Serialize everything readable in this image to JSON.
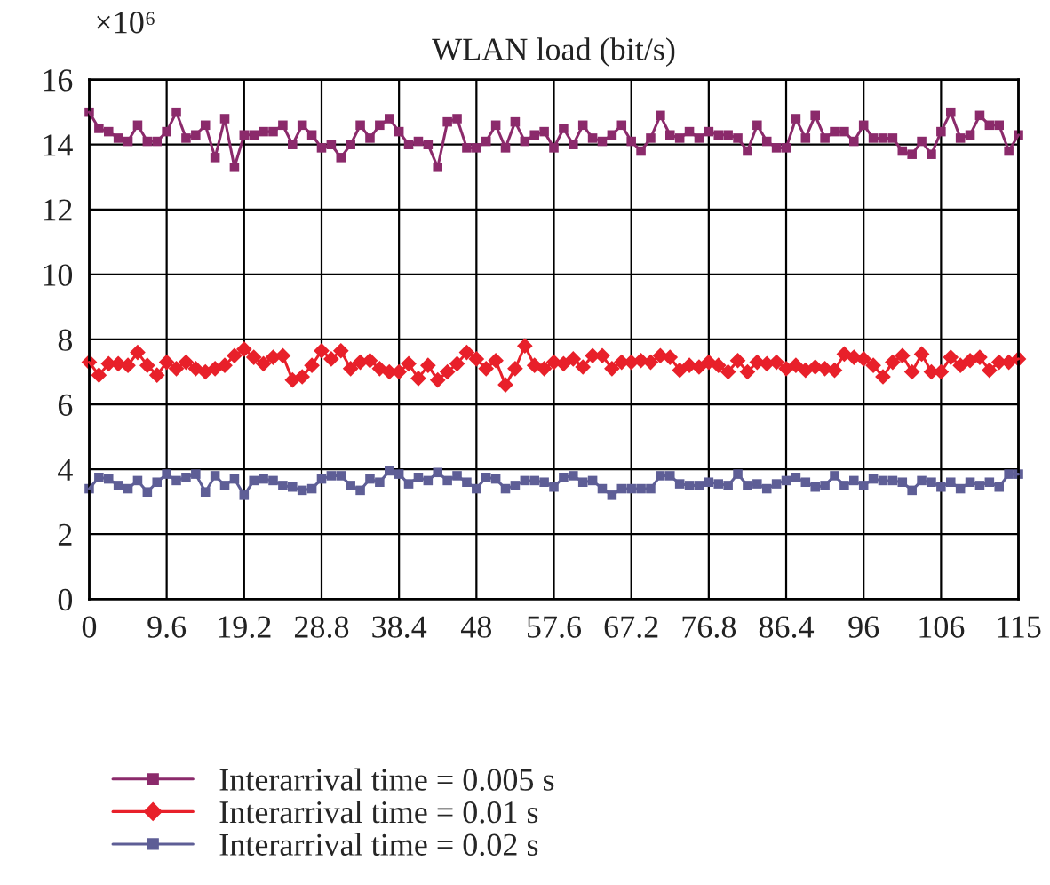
{
  "chart_data": {
    "type": "line",
    "title": "WLAN load (bit/s)",
    "annotations": [
      "×10⁶"
    ],
    "x": [
      0,
      1.2,
      2.4,
      3.6,
      4.8,
      6,
      7.2,
      8.4,
      9.6,
      10.8,
      12,
      13.2,
      14.4,
      15.6,
      16.8,
      18,
      19.2,
      20.4,
      21.6,
      22.8,
      24,
      25.2,
      26.4,
      27.6,
      28.8,
      30,
      31.2,
      32.4,
      33.6,
      34.8,
      36,
      37.2,
      38.4,
      39.6,
      40.8,
      42,
      43.2,
      44.4,
      45.6,
      46.8,
      48,
      49.2,
      50.4,
      51.6,
      52.8,
      54,
      55.2,
      56.4,
      57.6,
      58.8,
      60,
      61.2,
      62.4,
      63.6,
      64.8,
      66,
      67.2,
      68.4,
      69.6,
      70.8,
      72,
      73.2,
      74.4,
      75.6,
      76.8,
      78,
      79.2,
      80.4,
      81.6,
      82.8,
      84,
      85.2,
      86.4,
      87.6,
      88.8,
      90,
      91.2,
      92.4,
      93.6,
      94.8,
      96,
      97.2,
      98.4,
      99.6,
      100.8,
      102,
      103.2,
      104.4,
      105.6,
      106.8,
      108,
      109.2,
      110.4,
      111.6,
      112.8,
      114,
      115.2
    ],
    "series": [
      {
        "name": "Interarrival time = 0.005 s",
        "color": "#8b2a6b",
        "marker": "square",
        "values": [
          15.0,
          14.5,
          14.4,
          14.2,
          14.1,
          14.6,
          14.1,
          14.1,
          14.4,
          15.0,
          14.2,
          14.3,
          14.6,
          13.6,
          14.8,
          13.3,
          14.3,
          14.3,
          14.4,
          14.4,
          14.6,
          14.0,
          14.6,
          14.3,
          13.9,
          14.0,
          13.6,
          14.0,
          14.6,
          14.2,
          14.6,
          14.8,
          14.4,
          14.0,
          14.1,
          14.0,
          13.3,
          14.7,
          14.8,
          13.9,
          13.9,
          14.1,
          14.6,
          13.9,
          14.7,
          14.1,
          14.3,
          14.4,
          13.9,
          14.5,
          14.0,
          14.6,
          14.2,
          14.1,
          14.3,
          14.6,
          14.1,
          13.8,
          14.2,
          14.9,
          14.3,
          14.2,
          14.4,
          14.2,
          14.4,
          14.3,
          14.3,
          14.2,
          13.8,
          14.6,
          14.1,
          13.9,
          13.9,
          14.8,
          14.2,
          14.9,
          14.2,
          14.4,
          14.4,
          14.1,
          14.6,
          14.2,
          14.2,
          14.2,
          13.8,
          13.7,
          14.1,
          13.7,
          14.4,
          15.0,
          14.2,
          14.3,
          14.9,
          14.6,
          14.6,
          13.8,
          14.3
        ]
      },
      {
        "name": "Interarrival time = 0.01 s",
        "color": "#e8202a",
        "marker": "diamond",
        "values": [
          7.3,
          6.9,
          7.25,
          7.25,
          7.2,
          7.6,
          7.2,
          6.9,
          7.3,
          7.1,
          7.3,
          7.1,
          7.0,
          7.1,
          7.2,
          7.5,
          7.7,
          7.45,
          7.25,
          7.45,
          7.5,
          6.75,
          6.85,
          7.2,
          7.65,
          7.4,
          7.65,
          7.1,
          7.3,
          7.35,
          7.1,
          7.0,
          7.0,
          7.25,
          6.8,
          7.2,
          6.75,
          7.0,
          7.25,
          7.6,
          7.4,
          7.1,
          7.35,
          6.6,
          7.1,
          7.8,
          7.2,
          7.1,
          7.3,
          7.25,
          7.4,
          7.15,
          7.5,
          7.5,
          7.1,
          7.3,
          7.3,
          7.35,
          7.3,
          7.5,
          7.45,
          7.05,
          7.2,
          7.15,
          7.3,
          7.2,
          7.0,
          7.35,
          7.0,
          7.3,
          7.25,
          7.3,
          7.1,
          7.2,
          7.05,
          7.15,
          7.1,
          7.05,
          7.55,
          7.45,
          7.4,
          7.2,
          6.85,
          7.3,
          7.5,
          7.0,
          7.55,
          7.0,
          7.0,
          7.45,
          7.2,
          7.35,
          7.45,
          7.05,
          7.3,
          7.3,
          7.4
        ]
      },
      {
        "name": "Interarrival time = 0.02 s",
        "color": "#5e5e96",
        "marker": "square",
        "values": [
          3.4,
          3.75,
          3.7,
          3.5,
          3.4,
          3.65,
          3.3,
          3.6,
          3.85,
          3.65,
          3.75,
          3.85,
          3.3,
          3.8,
          3.5,
          3.7,
          3.2,
          3.65,
          3.7,
          3.65,
          3.5,
          3.45,
          3.35,
          3.4,
          3.7,
          3.8,
          3.8,
          3.5,
          3.35,
          3.7,
          3.6,
          3.95,
          3.85,
          3.55,
          3.75,
          3.65,
          3.9,
          3.65,
          3.8,
          3.6,
          3.4,
          3.75,
          3.7,
          3.4,
          3.5,
          3.65,
          3.65,
          3.6,
          3.45,
          3.75,
          3.8,
          3.6,
          3.65,
          3.4,
          3.2,
          3.4,
          3.4,
          3.4,
          3.4,
          3.8,
          3.8,
          3.55,
          3.5,
          3.5,
          3.6,
          3.55,
          3.5,
          3.85,
          3.5,
          3.55,
          3.4,
          3.55,
          3.65,
          3.75,
          3.6,
          3.45,
          3.5,
          3.8,
          3.5,
          3.65,
          3.5,
          3.7,
          3.65,
          3.65,
          3.6,
          3.35,
          3.65,
          3.6,
          3.45,
          3.6,
          3.4,
          3.6,
          3.5,
          3.6,
          3.45,
          3.85,
          3.85
        ]
      }
    ],
    "xlim": [
      0,
      115.2
    ],
    "xticks": [
      0,
      9.6,
      19.2,
      28.8,
      38.4,
      48,
      57.6,
      67.2,
      76.8,
      86.4,
      96,
      {
        "value": 105.6,
        "label": "106"
      },
      {
        "value": 115.2,
        "label": "115"
      }
    ],
    "ylim": [
      0,
      16
    ],
    "yticks": [
      0,
      2,
      4,
      6,
      8,
      10,
      12,
      14,
      16
    ],
    "grid": true,
    "legend": "bottom",
    "line_style": "solid"
  }
}
